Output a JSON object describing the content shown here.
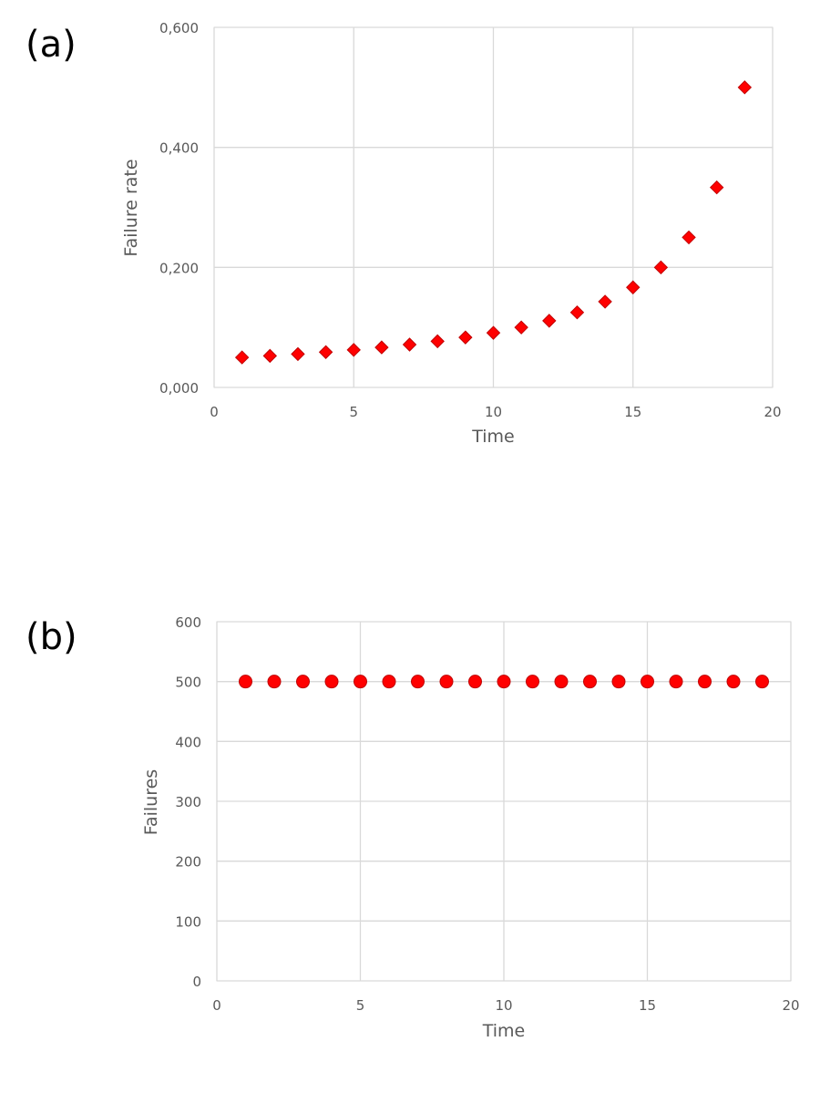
{
  "chart_data": [
    {
      "type": "scatter",
      "panel_label": "(a)",
      "xlabel": "Time",
      "ylabel": "Failure rate",
      "xlim": [
        0,
        20
      ],
      "ylim": [
        0,
        0.6
      ],
      "grid": true,
      "xticks": [
        "0",
        "5",
        "10",
        "15",
        "20"
      ],
      "yticks": [
        "0,000",
        "0,200",
        "0,400",
        "0,600"
      ],
      "x": [
        1,
        2,
        3,
        4,
        5,
        6,
        7,
        8,
        9,
        10,
        11,
        12,
        13,
        14,
        15,
        16,
        17,
        18,
        19
      ],
      "y": [
        0.05,
        0.0526,
        0.0556,
        0.0588,
        0.0625,
        0.0667,
        0.0714,
        0.0769,
        0.0833,
        0.0909,
        0.1,
        0.1111,
        0.125,
        0.1429,
        0.1667,
        0.2,
        0.25,
        0.3333,
        0.5
      ],
      "marker": "diamond",
      "color": "#ff0000"
    },
    {
      "type": "scatter",
      "panel_label": "(b)",
      "xlabel": "Time",
      "ylabel": "Failures",
      "xlim": [
        0,
        20
      ],
      "ylim": [
        0,
        600
      ],
      "grid": true,
      "xticks": [
        "0",
        "5",
        "10",
        "15",
        "20"
      ],
      "yticks": [
        "0",
        "100",
        "200",
        "300",
        "400",
        "500",
        "600"
      ],
      "x": [
        1,
        2,
        3,
        4,
        5,
        6,
        7,
        8,
        9,
        10,
        11,
        12,
        13,
        14,
        15,
        16,
        17,
        18,
        19
      ],
      "y": [
        500,
        500,
        500,
        500,
        500,
        500,
        500,
        500,
        500,
        500,
        500,
        500,
        500,
        500,
        500,
        500,
        500,
        500,
        500
      ],
      "marker": "circle",
      "color": "#ff0000"
    }
  ]
}
